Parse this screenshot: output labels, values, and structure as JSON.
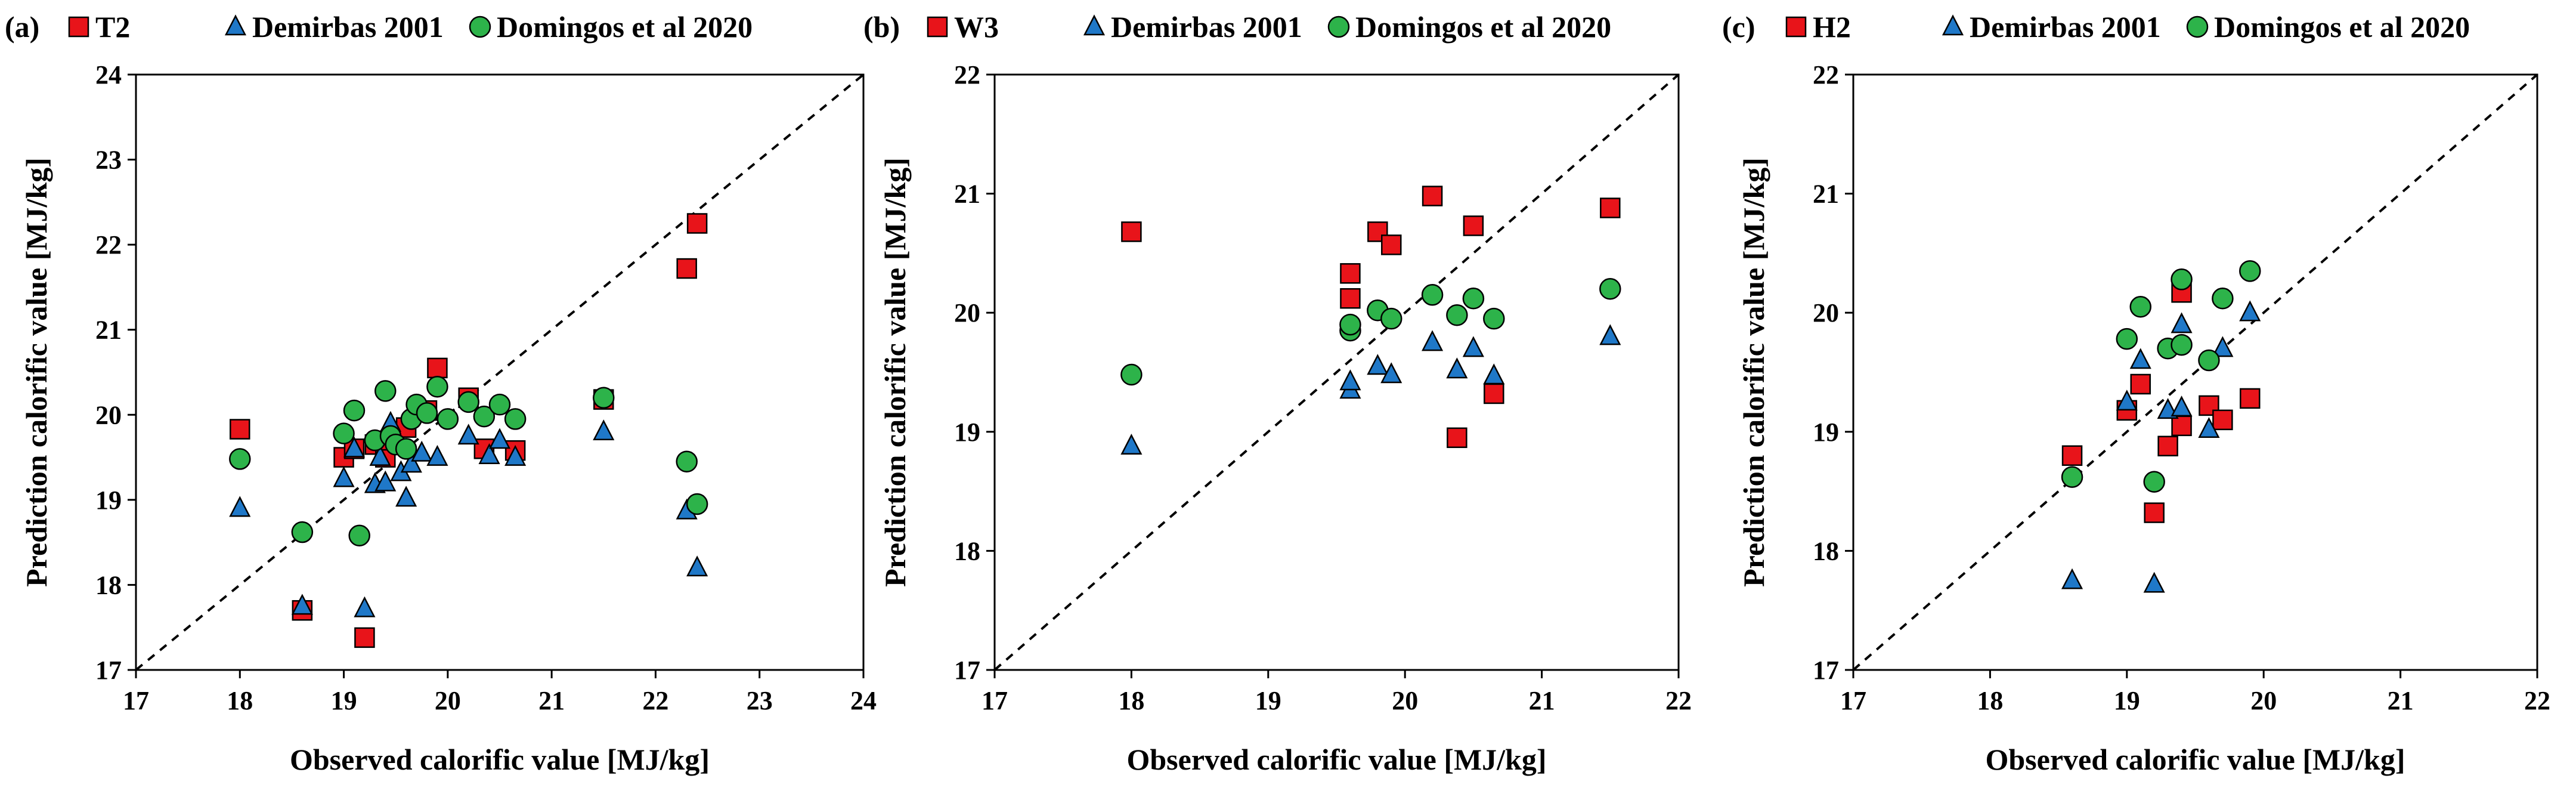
{
  "colors": {
    "model": "#e8141a",
    "demirbas": "#1f78c8",
    "domingos": "#2db34a",
    "marker_edge": "#000000"
  },
  "chart_data": [
    {
      "type": "scatter",
      "panel_label": "(a)",
      "legend": [
        "T2",
        "Demirbas 2001",
        "Domingos et al 2020"
      ],
      "xlabel": "Observed calorific value [MJ/kg]",
      "ylabel": "Prediction calorific value [MJ/kg]",
      "xlim": [
        17,
        24
      ],
      "ylim": [
        17,
        24
      ],
      "xticks": [
        17,
        18,
        19,
        20,
        21,
        22,
        23,
        24
      ],
      "yticks": [
        17,
        18,
        19,
        20,
        21,
        22,
        23,
        24
      ],
      "diagonal": true,
      "series": [
        {
          "name": "T2",
          "marker": "square",
          "color": "#e8141a",
          "x": [
            18.0,
            18.6,
            19.0,
            19.1,
            19.2,
            19.3,
            19.4,
            19.45,
            19.6,
            19.8,
            19.9,
            20.2,
            20.35,
            20.65,
            21.5,
            22.3,
            22.4
          ],
          "y": [
            19.83,
            17.7,
            19.5,
            19.6,
            17.38,
            19.65,
            19.5,
            19.7,
            19.85,
            20.05,
            20.55,
            20.2,
            19.6,
            19.58,
            20.18,
            21.72,
            22.25
          ]
        },
        {
          "name": "Demirbas 2001",
          "marker": "triangle",
          "color": "#1f78c8",
          "x": [
            18.0,
            18.6,
            19.0,
            19.1,
            19.2,
            19.3,
            19.35,
            19.4,
            19.45,
            19.55,
            19.6,
            19.65,
            19.75,
            19.9,
            20.2,
            20.4,
            20.5,
            20.65,
            21.5,
            22.3,
            22.4
          ],
          "y": [
            18.9,
            17.75,
            19.25,
            19.6,
            17.72,
            19.18,
            19.5,
            19.2,
            19.9,
            19.32,
            19.02,
            19.42,
            19.55,
            19.5,
            19.75,
            19.52,
            19.7,
            19.5,
            19.8,
            18.87,
            18.2
          ]
        },
        {
          "name": "Domingos et al 2020",
          "marker": "circle",
          "color": "#2db34a",
          "x": [
            18.0,
            18.6,
            19.0,
            19.1,
            19.15,
            19.3,
            19.4,
            19.45,
            19.5,
            19.6,
            19.65,
            19.7,
            19.8,
            19.9,
            20.0,
            20.2,
            20.35,
            20.5,
            20.65,
            21.5,
            22.3,
            22.4
          ],
          "y": [
            19.48,
            18.62,
            19.78,
            20.05,
            18.58,
            19.7,
            20.28,
            19.75,
            19.65,
            19.6,
            19.95,
            20.12,
            20.02,
            20.33,
            19.95,
            20.15,
            19.98,
            20.12,
            19.95,
            20.2,
            19.45,
            18.95
          ]
        }
      ]
    },
    {
      "type": "scatter",
      "panel_label": "(b)",
      "legend": [
        "W3",
        "Demirbas 2001",
        "Domingos et al 2020"
      ],
      "xlabel": "Observed calorific value [MJ/kg]",
      "ylabel": "Prediction calorific value [MJ/kg]",
      "xlim": [
        17,
        22
      ],
      "ylim": [
        17,
        22
      ],
      "xticks": [
        17,
        18,
        19,
        20,
        21,
        22
      ],
      "yticks": [
        17,
        18,
        19,
        20,
        21,
        22
      ],
      "diagonal": true,
      "series": [
        {
          "name": "W3",
          "marker": "square",
          "color": "#e8141a",
          "x": [
            18.0,
            19.6,
            19.6,
            19.8,
            19.9,
            20.2,
            20.38,
            20.5,
            20.65,
            21.5
          ],
          "y": [
            20.68,
            20.33,
            20.12,
            20.68,
            20.57,
            20.98,
            18.95,
            20.73,
            19.32,
            20.88
          ]
        },
        {
          "name": "Demirbas 2001",
          "marker": "triangle",
          "color": "#1f78c8",
          "x": [
            18.0,
            19.6,
            19.6,
            19.8,
            19.9,
            20.2,
            20.38,
            20.5,
            20.65,
            21.5
          ],
          "y": [
            18.88,
            19.35,
            19.42,
            19.55,
            19.48,
            19.75,
            19.52,
            19.7,
            19.47,
            19.8
          ]
        },
        {
          "name": "Domingos et al 2020",
          "marker": "circle",
          "color": "#2db34a",
          "x": [
            18.0,
            19.6,
            19.6,
            19.8,
            19.9,
            20.2,
            20.38,
            20.5,
            20.65,
            21.5
          ],
          "y": [
            19.48,
            19.85,
            19.9,
            20.02,
            19.95,
            20.15,
            19.98,
            20.12,
            19.95,
            20.2
          ]
        }
      ]
    },
    {
      "type": "scatter",
      "panel_label": "(c)",
      "legend": [
        "H2",
        "Demirbas 2001",
        "Domingos et al 2020"
      ],
      "xlabel": "Observed calorific value [MJ/kg]",
      "ylabel": "Prediction calorific value [MJ/kg]",
      "xlim": [
        17,
        22
      ],
      "ylim": [
        17,
        22
      ],
      "xticks": [
        17,
        18,
        19,
        20,
        21,
        22
      ],
      "yticks": [
        17,
        18,
        19,
        20,
        21,
        22
      ],
      "diagonal": true,
      "series": [
        {
          "name": "H2",
          "marker": "square",
          "color": "#e8141a",
          "x": [
            18.6,
            19.0,
            19.1,
            19.2,
            19.3,
            19.4,
            19.4,
            19.6,
            19.7,
            19.9
          ],
          "y": [
            18.8,
            19.18,
            19.4,
            18.32,
            18.88,
            20.17,
            19.05,
            19.22,
            19.1,
            19.28
          ]
        },
        {
          "name": "Demirbas 2001",
          "marker": "triangle",
          "color": "#1f78c8",
          "x": [
            18.6,
            19.0,
            19.1,
            19.2,
            19.3,
            19.4,
            19.4,
            19.6,
            19.7,
            19.9
          ],
          "y": [
            17.75,
            19.25,
            19.6,
            17.72,
            19.18,
            19.9,
            19.2,
            19.02,
            19.7,
            20.0
          ]
        },
        {
          "name": "Domingos et al 2020",
          "marker": "circle",
          "color": "#2db34a",
          "x": [
            18.6,
            19.0,
            19.1,
            19.2,
            19.3,
            19.4,
            19.4,
            19.6,
            19.7,
            19.9
          ],
          "y": [
            18.62,
            19.78,
            20.05,
            18.58,
            19.7,
            20.28,
            19.73,
            19.6,
            20.12,
            20.35
          ]
        }
      ]
    }
  ]
}
